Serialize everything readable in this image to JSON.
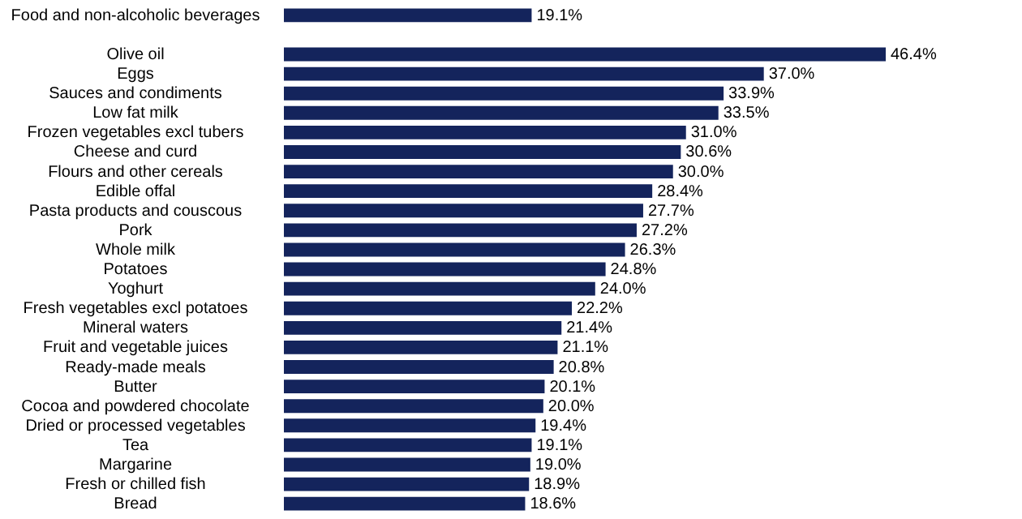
{
  "chart_data": {
    "type": "bar",
    "orientation": "horizontal",
    "color": "#14245c",
    "categories": [
      "Food and non-alcoholic beverages",
      null,
      "Olive oil",
      "Eggs",
      "Sauces and condiments",
      "Low fat milk",
      "Frozen vegetables excl tubers",
      "Cheese and curd",
      "Flours and other cereals",
      "Edible offal",
      "Pasta products and couscous",
      "Pork",
      "Whole milk",
      "Potatoes",
      "Yoghurt",
      "Fresh vegetables excl potatoes",
      "Mineral waters",
      "Fruit and vegetable juices",
      "Ready-made meals",
      "Butter",
      "Cocoa and powdered chocolate",
      "Dried or processed vegetables",
      "Tea",
      "Margarine",
      "Fresh or chilled fish",
      "Bread"
    ],
    "values": [
      19.1,
      null,
      46.4,
      37.0,
      33.9,
      33.5,
      31.0,
      30.6,
      30.0,
      28.4,
      27.7,
      27.2,
      26.3,
      24.8,
      24.0,
      22.2,
      21.4,
      21.1,
      20.8,
      20.1,
      20.0,
      19.4,
      19.1,
      19.0,
      18.9,
      18.6
    ],
    "value_labels": [
      "19.1%",
      null,
      "46.4%",
      "37.0%",
      "33.9%",
      "33.5%",
      "31.0%",
      "30.6%",
      "30.0%",
      "28.4%",
      "27.7%",
      "27.2%",
      "26.3%",
      "24.8%",
      "24.0%",
      "22.2%",
      "21.4%",
      "21.1%",
      "20.8%",
      "20.1%",
      "20.0%",
      "19.4%",
      "19.1%",
      "19.0%",
      "18.9%",
      "18.6%"
    ]
  }
}
